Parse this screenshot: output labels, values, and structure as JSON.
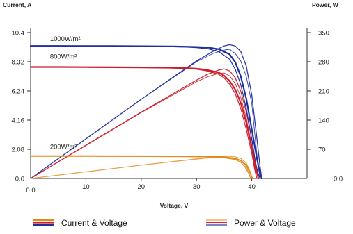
{
  "chart_data": {
    "type": "line",
    "title": "",
    "xlabel": "Voltage, V",
    "ylabel_left": "Current, A",
    "ylabel_right": "Power, W",
    "xlim": [
      0,
      50
    ],
    "ylim_left": [
      0,
      10.4
    ],
    "ylim_right": [
      0,
      350
    ],
    "x_ticks": [
      10,
      20,
      30,
      40
    ],
    "x_tick_labels": [
      "10",
      "20",
      "30",
      "40"
    ],
    "x_origin_label": "0.0",
    "y_left_ticks": [
      0,
      2.08,
      4.16,
      6.24,
      8.32,
      10.4
    ],
    "y_left_tick_labels": [
      "0.0",
      "2.08",
      "4.16",
      "6.24",
      "8.32",
      "10.4"
    ],
    "y_right_ticks": [
      0,
      70,
      140,
      210,
      280,
      350
    ],
    "y_right_tick_labels": [
      "0.0",
      "70",
      "140",
      "210",
      "280",
      "350"
    ],
    "grid": false,
    "legend_position": "bottom",
    "irradiance_labels": [
      {
        "text": "1000W/m²",
        "x": 3,
        "y": 9.7
      },
      {
        "text": "800W/m²",
        "x": 3,
        "y": 8.45
      },
      {
        "text": "200W/m²",
        "x": 3,
        "y": 2.0
      }
    ],
    "series": [
      {
        "group": "current",
        "axis": "left",
        "color": "#1f2f9e",
        "width": 2.2,
        "x": [
          0,
          5,
          10,
          15,
          20,
          25,
          28,
          30,
          32,
          34,
          36,
          37,
          38,
          39,
          40,
          40.8,
          41.4,
          41.8
        ],
        "y": [
          9.45,
          9.45,
          9.44,
          9.44,
          9.43,
          9.42,
          9.4,
          9.38,
          9.34,
          9.22,
          8.85,
          8.3,
          7.3,
          5.7,
          3.5,
          1.7,
          0.5,
          0
        ]
      },
      {
        "group": "current",
        "axis": "left",
        "color": "#1f2f9e",
        "width": 1.2,
        "x": [
          0,
          5,
          10,
          15,
          20,
          25,
          28,
          30,
          32,
          34,
          36,
          37,
          38,
          39,
          40,
          40.6,
          41.1,
          41.5
        ],
        "y": [
          9.45,
          9.45,
          9.44,
          9.44,
          9.42,
          9.4,
          9.37,
          9.33,
          9.25,
          9.05,
          8.5,
          7.8,
          6.7,
          5.0,
          2.8,
          1.3,
          0.4,
          0
        ]
      },
      {
        "group": "current",
        "axis": "left",
        "color": "#cc1f2a",
        "width": 2.2,
        "x": [
          0,
          5,
          10,
          15,
          20,
          25,
          28,
          30,
          32,
          34,
          35,
          36,
          37,
          38,
          39,
          40,
          40.7,
          41.2
        ],
        "y": [
          7.95,
          7.95,
          7.94,
          7.93,
          7.92,
          7.9,
          7.87,
          7.83,
          7.73,
          7.55,
          7.33,
          6.95,
          6.35,
          5.4,
          4.0,
          2.2,
          0.8,
          0
        ]
      },
      {
        "group": "current",
        "axis": "left",
        "color": "#cc1f2a",
        "width": 1.2,
        "x": [
          0,
          5,
          10,
          15,
          20,
          25,
          28,
          30,
          32,
          34,
          35,
          36,
          37,
          38,
          39,
          40,
          40.5,
          40.9
        ],
        "y": [
          7.95,
          7.95,
          7.94,
          7.93,
          7.91,
          7.88,
          7.84,
          7.79,
          7.66,
          7.43,
          7.17,
          6.72,
          6.05,
          5.0,
          3.5,
          1.8,
          0.7,
          0
        ]
      },
      {
        "group": "current",
        "axis": "left",
        "color": "#e08a1a",
        "width": 2.0,
        "x": [
          0,
          5,
          10,
          15,
          20,
          25,
          30,
          33,
          35,
          37,
          38,
          39,
          39.6,
          40.1
        ],
        "y": [
          1.6,
          1.6,
          1.6,
          1.59,
          1.59,
          1.58,
          1.57,
          1.55,
          1.52,
          1.42,
          1.28,
          0.95,
          0.5,
          0
        ]
      },
      {
        "group": "current",
        "axis": "left",
        "color": "#e08a1a",
        "width": 1.1,
        "x": [
          0,
          5,
          10,
          15,
          20,
          25,
          30,
          33,
          35,
          37,
          38,
          38.8,
          39.4,
          39.8
        ],
        "y": [
          1.6,
          1.6,
          1.6,
          1.59,
          1.58,
          1.57,
          1.55,
          1.52,
          1.47,
          1.35,
          1.15,
          0.8,
          0.4,
          0
        ]
      },
      {
        "group": "power",
        "axis": "right",
        "color": "#2a3aa8",
        "width": 1.3,
        "x": [
          0,
          10,
          20,
          30,
          33,
          35,
          36,
          37,
          38,
          39,
          40,
          40.8,
          41.4,
          41.8
        ],
        "y": [
          0,
          95,
          190,
          282,
          305,
          318,
          321,
          318,
          305,
          270,
          200,
          110,
          40,
          0
        ]
      },
      {
        "group": "power",
        "axis": "right",
        "color": "#2a3aa8",
        "width": 0.9,
        "x": [
          0,
          10,
          20,
          30,
          33,
          35,
          36,
          37,
          38,
          39,
          40,
          40.6,
          41.1,
          41.5
        ],
        "y": [
          0,
          95,
          190,
          280,
          300,
          308,
          310,
          300,
          282,
          245,
          180,
          100,
          35,
          0
        ]
      },
      {
        "group": "power",
        "axis": "right",
        "color": "#cc2a35",
        "width": 1.3,
        "x": [
          0,
          10,
          20,
          30,
          32,
          34,
          35,
          36,
          37,
          38,
          39,
          40,
          40.7,
          41.2
        ],
        "y": [
          0,
          80,
          159,
          236,
          250,
          260,
          263,
          258,
          242,
          210,
          160,
          95,
          35,
          0
        ]
      },
      {
        "group": "power",
        "axis": "right",
        "color": "#cc2a35",
        "width": 0.9,
        "x": [
          0,
          10,
          20,
          30,
          32,
          34,
          35,
          36,
          37,
          38,
          39,
          40,
          40.5,
          40.9
        ],
        "y": [
          0,
          79,
          158,
          232,
          244,
          252,
          253,
          246,
          228,
          195,
          145,
          80,
          30,
          0
        ]
      },
      {
        "group": "power",
        "axis": "right",
        "color": "#e6a04a",
        "width": 1.2,
        "x": [
          0,
          10,
          20,
          30,
          33,
          35,
          36,
          37,
          38,
          39,
          39.6,
          40.1
        ],
        "y": [
          0,
          16,
          32,
          47,
          51,
          53,
          53,
          52,
          48,
          37,
          20,
          0
        ]
      },
      {
        "group": "power",
        "axis": "right",
        "color": "#e6a04a",
        "width": 0.8,
        "x": [
          0,
          10,
          20,
          30,
          33,
          35,
          36,
          37,
          38,
          38.8,
          39.4,
          39.8
        ],
        "y": [
          0,
          16,
          32,
          46,
          50,
          51,
          50,
          48,
          43,
          31,
          16,
          0
        ]
      }
    ],
    "legend": [
      {
        "label": "Current & Voltage",
        "colors": [
          "#e08a1a",
          "#cc1f2a",
          "#1f2f9e"
        ],
        "thickness": 2.2
      },
      {
        "label": "Power & Voltage",
        "colors": [
          "#e6a04a",
          "#cc2a35",
          "#2a3aa8"
        ],
        "thickness": 1.2
      }
    ]
  }
}
